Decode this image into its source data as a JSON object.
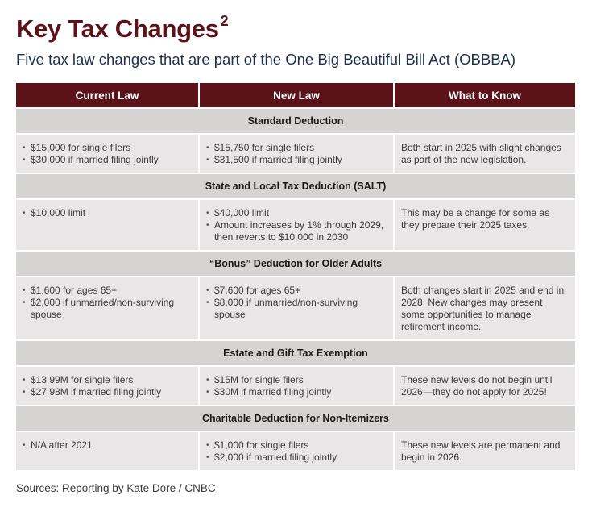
{
  "title": "Key Tax Changes",
  "title_superscript": "2",
  "subtitle": "Five tax law changes that are part of the One Big Beautiful Bill Act (OBBBA)",
  "columns": [
    "Current Law",
    "New Law",
    "What to Know"
  ],
  "sections": [
    {
      "heading": "Standard Deduction",
      "current": [
        "$15,000 for single filers",
        "$30,000 if married filing jointly"
      ],
      "new": [
        "$15,750 for single filers",
        "$31,500 if married filing jointly"
      ],
      "know": "Both start in 2025 with slight changes as part of the new legislation."
    },
    {
      "heading": "State and Local Tax Deduction (SALT)",
      "current": [
        "$10,000 limit"
      ],
      "new": [
        "$40,000 limit",
        "Amount increases by 1% through 2029, then reverts to $10,000 in 2030"
      ],
      "know": "This may be a change for some as they prepare their 2025 taxes."
    },
    {
      "heading": "“Bonus” Deduction for Older Adults",
      "current": [
        "$1,600 for ages 65+",
        "$2,000 if unmarried/non-surviving spouse"
      ],
      "new": [
        "$7,600 for ages 65+",
        "$8,000 if unmarried/non-surviving spouse"
      ],
      "know": "Both changes start in 2025 and end in 2028. New changes may present some opportunities to manage retirement income."
    },
    {
      "heading": "Estate and Gift Tax Exemption",
      "current": [
        "$13.99M for single filers",
        "$27.98M if married filing jointly"
      ],
      "new": [
        "$15M for single filers",
        "$30M if married filing jointly"
      ],
      "know": "These new levels do not begin until 2026—they do not apply for 2025!"
    },
    {
      "heading": "Charitable Deduction for Non-Itemizers",
      "current": [
        "N/A after 2021"
      ],
      "new": [
        "$1,000 for single filers",
        "$2,000 if married filing jointly"
      ],
      "know": "These new levels are permanent and begin in 2026."
    }
  ],
  "source": "Sources: Reporting by Kate Dore / CNBC"
}
